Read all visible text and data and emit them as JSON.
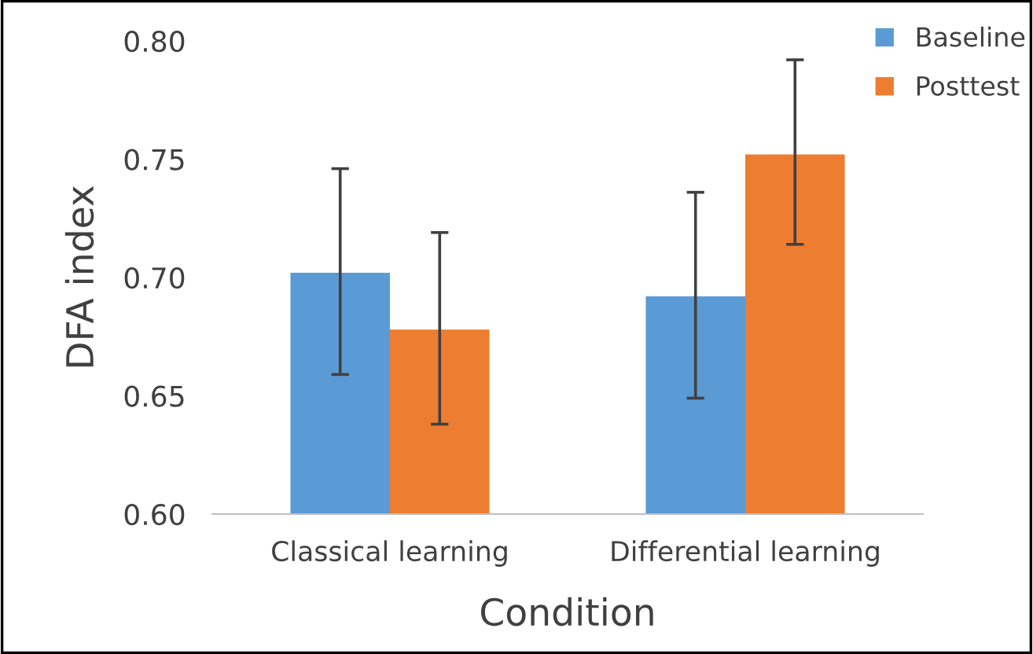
{
  "chart_data": {
    "type": "bar",
    "xlabel": "Condition",
    "ylabel": "DFA index",
    "categories": [
      "Classical learning",
      "Differential learning"
    ],
    "series": [
      {
        "name": "Baseline",
        "color": "#5b9bd5",
        "values": [
          0.702,
          0.692
        ],
        "errors": [
          [
            0.659,
            0.746
          ],
          [
            0.649,
            0.736
          ]
        ]
      },
      {
        "name": "Posttest",
        "color": "#ed7d31",
        "values": [
          0.678,
          0.752
        ],
        "errors": [
          [
            0.638,
            0.719
          ],
          [
            0.714,
            0.792
          ]
        ]
      }
    ],
    "ylim": [
      0.6,
      0.8
    ],
    "yticks": [
      {
        "value": 0.6,
        "label": "0.60"
      },
      {
        "value": 0.65,
        "label": "0.65"
      },
      {
        "value": 0.7,
        "label": "0.70"
      },
      {
        "value": 0.75,
        "label": "0.75"
      },
      {
        "value": 0.8,
        "label": "0.80"
      }
    ],
    "grid": false,
    "legend": "top right"
  }
}
